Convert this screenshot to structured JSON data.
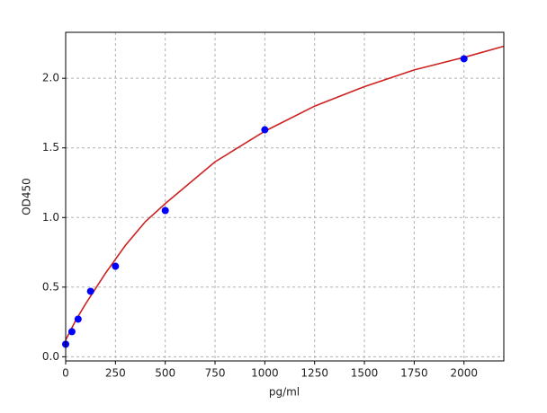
{
  "chart_data": {
    "type": "scatter",
    "xlabel": "pg/ml",
    "ylabel": "OD450",
    "xlim": [
      0,
      2200
    ],
    "ylim": [
      -0.03,
      2.33
    ],
    "xticks": [
      0,
      250,
      500,
      750,
      1000,
      1250,
      1500,
      1750,
      2000
    ],
    "yticks": [
      {
        "value": 0,
        "label": "0.0"
      },
      0.5,
      {
        "value": 1,
        "label": "1.0"
      },
      1.5,
      {
        "value": 2,
        "label": "2.0"
      }
    ],
    "grid": true,
    "series": [
      {
        "type": "scatter",
        "color": "#0000ff",
        "x": [
          0,
          31.25,
          62.5,
          125,
          250,
          500,
          1000,
          2000
        ],
        "values": [
          0.09,
          0.18,
          0.27,
          0.47,
          0.65,
          1.05,
          1.63,
          2.14
        ]
      },
      {
        "type": "line",
        "color": "#cc2222",
        "x": [
          0,
          50,
          100,
          200,
          300,
          400,
          500,
          750,
          1000,
          1250,
          1500,
          1750,
          2000,
          2200
        ],
        "values": [
          0.12,
          0.26,
          0.38,
          0.6,
          0.8,
          0.97,
          1.1,
          1.4,
          1.62,
          1.8,
          1.94,
          2.06,
          2.15,
          2.23
        ]
      }
    ]
  }
}
